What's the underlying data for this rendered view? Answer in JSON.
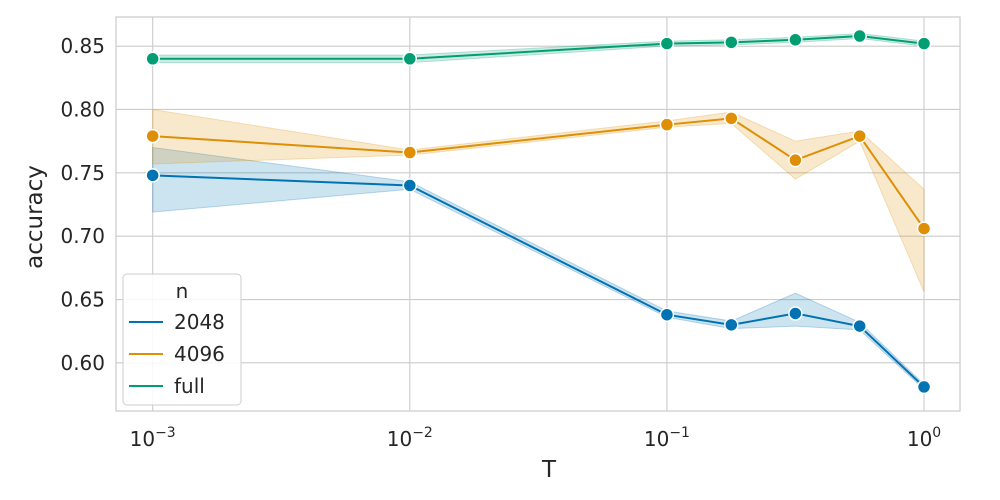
{
  "chart_data": {
    "type": "line",
    "title": "",
    "xlabel": "T",
    "ylabel": "accuracy",
    "x_scale": "log",
    "xlim": [
      0.00072,
      1.38
    ],
    "ylim": [
      0.562,
      0.873
    ],
    "grid": true,
    "x_ticks": [
      {
        "value": 0.001,
        "base": "10",
        "exp": "−3"
      },
      {
        "value": 0.01,
        "base": "10",
        "exp": "−2"
      },
      {
        "value": 0.1,
        "base": "10",
        "exp": "−1"
      },
      {
        "value": 1,
        "base": "10",
        "exp": "0"
      }
    ],
    "y_ticks": [
      "0.60",
      "0.65",
      "0.70",
      "0.75",
      "0.80",
      "0.85"
    ],
    "legend": {
      "title": "n",
      "position": "bottom-left"
    },
    "x": [
      0.001,
      0.01,
      0.1,
      0.178,
      0.316,
      0.562,
      1
    ],
    "series": [
      {
        "name": "2048",
        "color": "#0173b2",
        "values": [
          0.748,
          0.74,
          0.638,
          0.63,
          0.639,
          0.629,
          0.581
        ],
        "lower": [
          0.719,
          0.737,
          0.636,
          0.627,
          0.629,
          0.626,
          0.579
        ],
        "upper": [
          0.77,
          0.743,
          0.641,
          0.633,
          0.655,
          0.632,
          0.583
        ]
      },
      {
        "name": "4096",
        "color": "#de8f05",
        "values": [
          0.779,
          0.766,
          0.788,
          0.793,
          0.76,
          0.779,
          0.706
        ],
        "lower": [
          0.757,
          0.764,
          0.786,
          0.789,
          0.745,
          0.775,
          0.656
        ],
        "upper": [
          0.8,
          0.768,
          0.791,
          0.798,
          0.775,
          0.783,
          0.737
        ]
      },
      {
        "name": "full",
        "color": "#029e73",
        "values": [
          0.84,
          0.84,
          0.852,
          0.853,
          0.855,
          0.858,
          0.852
        ],
        "lower": [
          0.837,
          0.837,
          0.85,
          0.851,
          0.853,
          0.856,
          0.85
        ],
        "upper": [
          0.843,
          0.843,
          0.854,
          0.855,
          0.857,
          0.86,
          0.854
        ]
      }
    ]
  }
}
